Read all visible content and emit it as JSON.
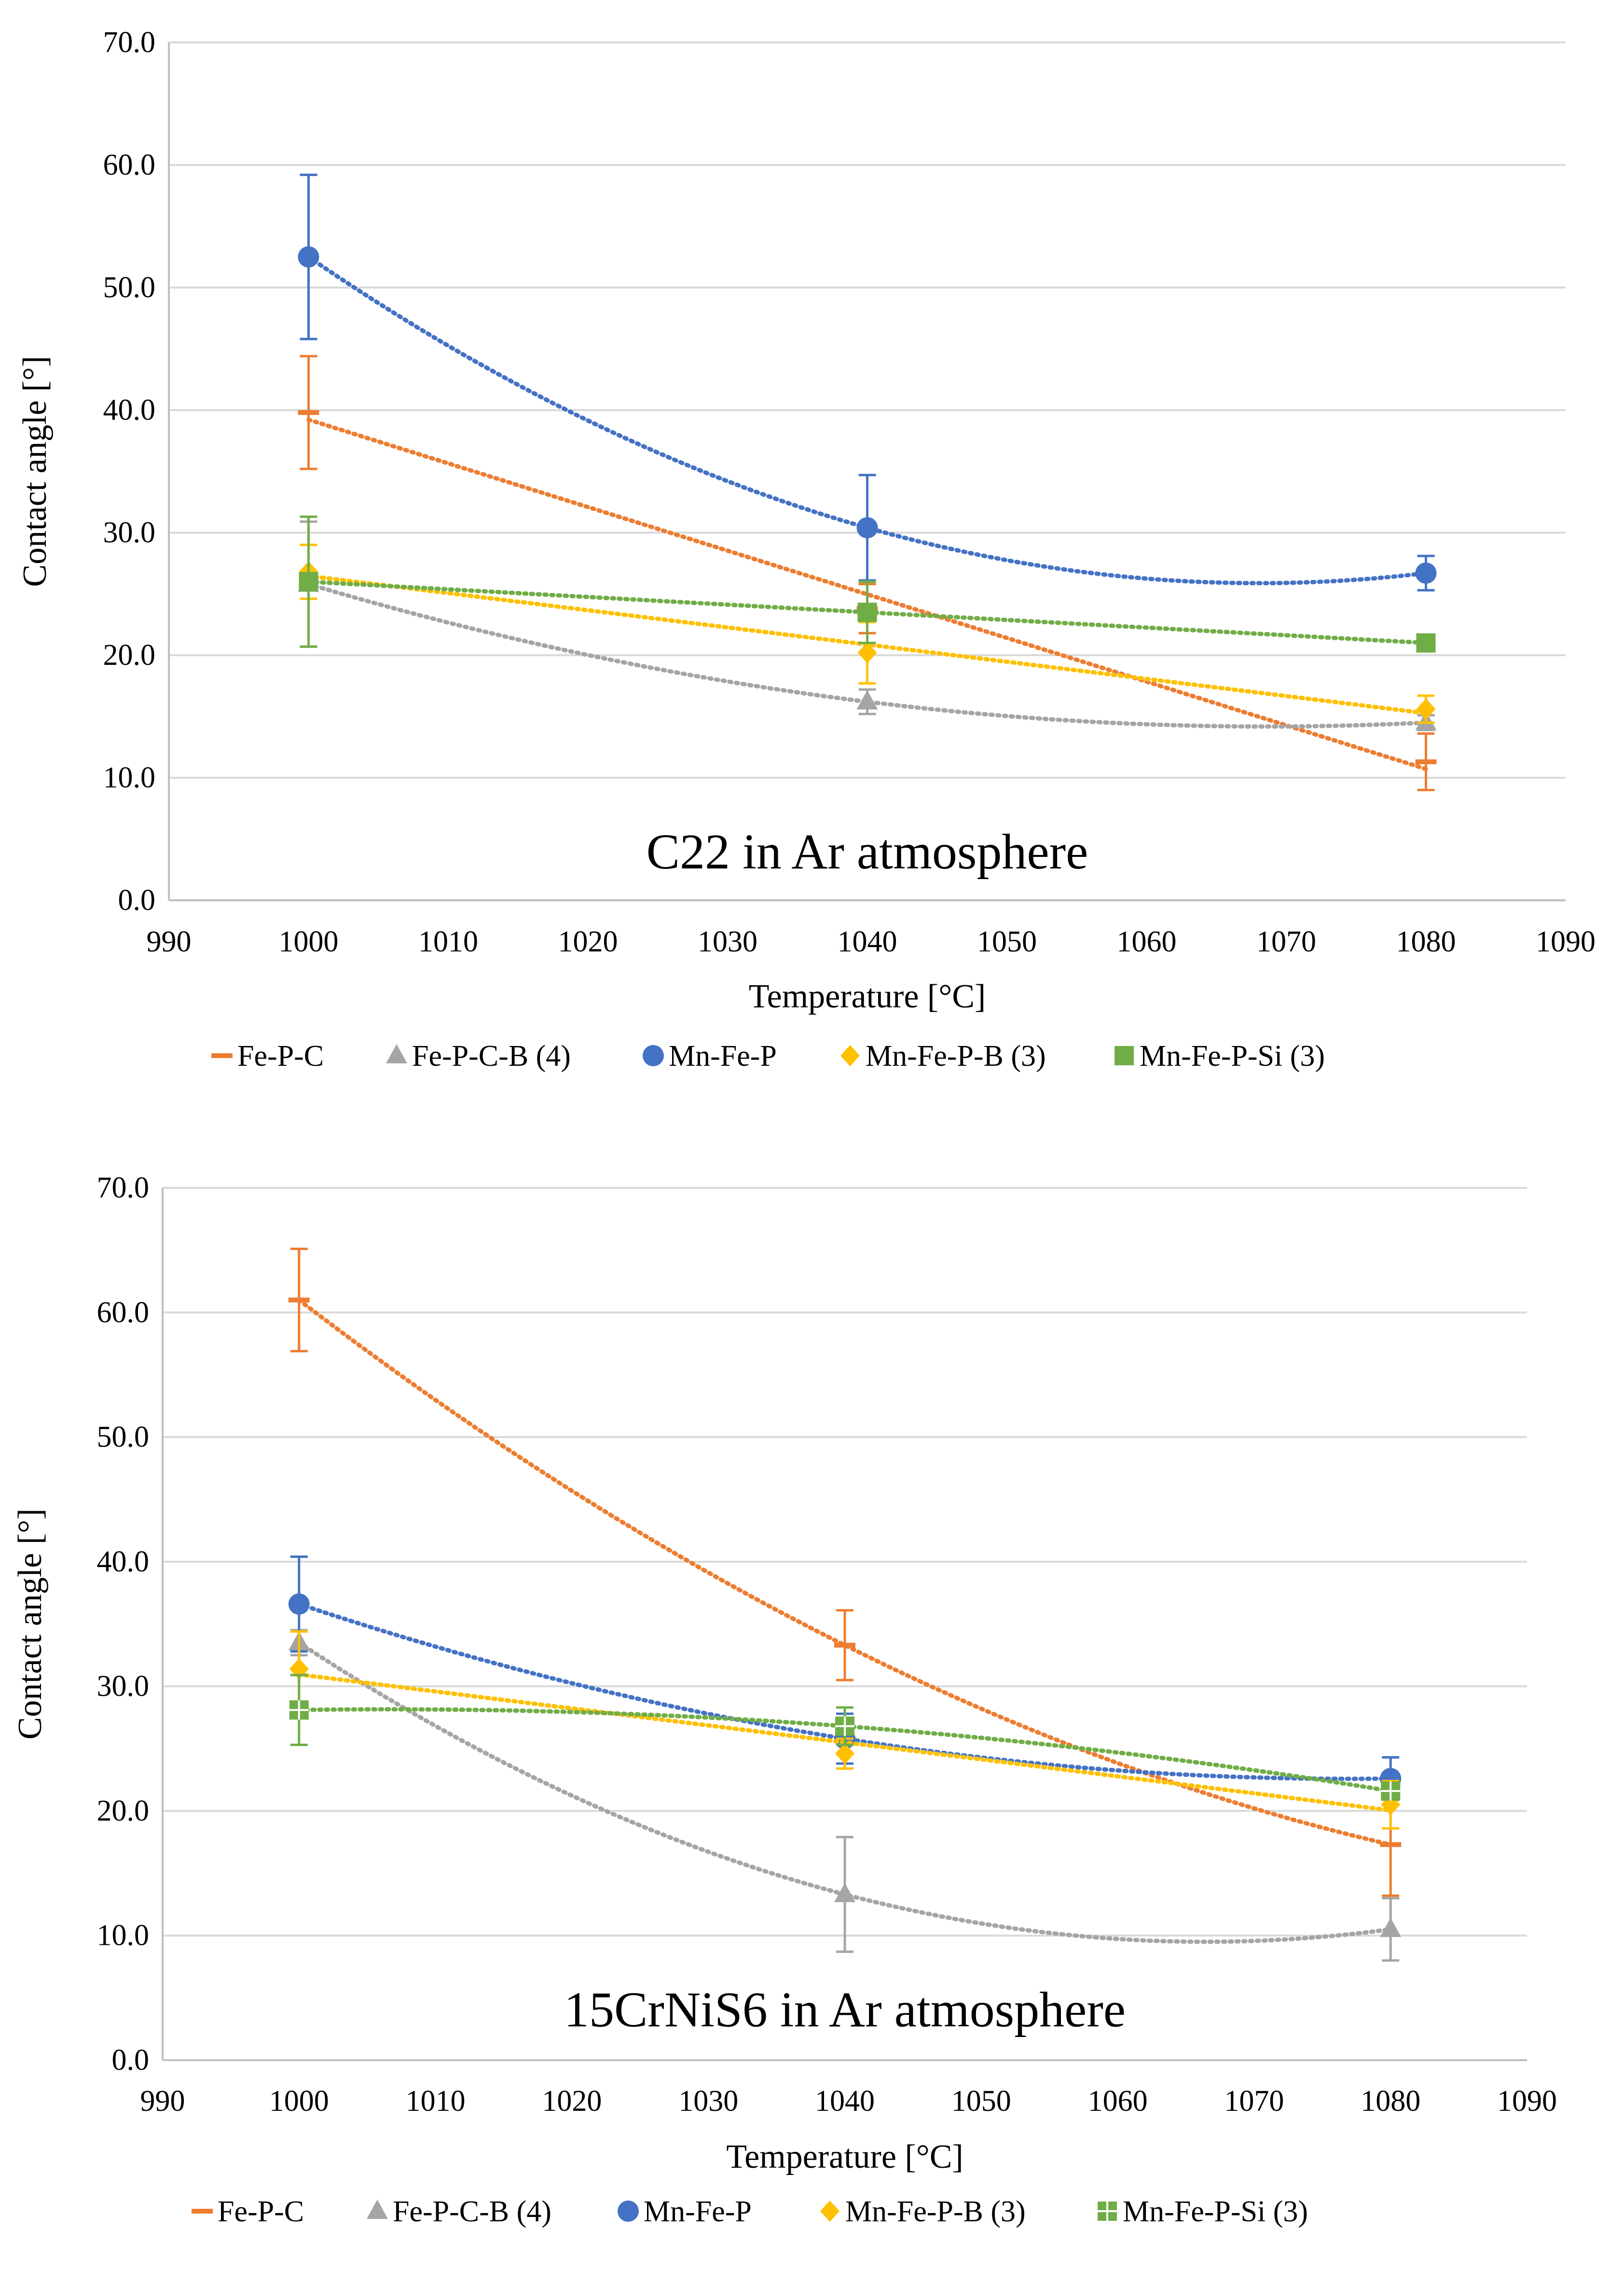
{
  "figure": {
    "description_panels": [
      "top",
      "bottom"
    ]
  },
  "colors": {
    "Fe-P-C": "#ED7D31",
    "Fe-P-C-B (4)": "#A5A5A5",
    "Mn-Fe-P": "#4472C4",
    "Mn-Fe-P-B (3)": "#FFC000",
    "Mn-Fe-P-Si (3)": "#70AD47",
    "grid": "#d9d9d9",
    "axis": "#bfbfbf"
  },
  "chart_data": [
    {
      "type": "line",
      "title": "C22 in Ar atmosphere",
      "xlabel": "Temperature [°C]",
      "ylabel": "Contact angle [°]",
      "xlim": [
        990,
        1090
      ],
      "ylim": [
        0,
        70
      ],
      "x_ticks": [
        "990",
        "1000",
        "1010",
        "1020",
        "1030",
        "1040",
        "1050",
        "1060",
        "1070",
        "1080",
        "1090"
      ],
      "y_ticks": [
        "0.0",
        "10.0",
        "20.0",
        "30.0",
        "40.0",
        "50.0",
        "60.0",
        "70.0"
      ],
      "grid": true,
      "legend": "bottom",
      "x": [
        1000,
        1040,
        1080
      ],
      "series": [
        {
          "name": "Fe-P-C",
          "marker": "dash",
          "values": [
            39.8,
            23.8,
            11.3
          ],
          "errors": [
            4.6,
            2.0,
            2.3
          ],
          "trend": "linear"
        },
        {
          "name": "Fe-P-C-B (4)",
          "marker": "triangle",
          "values": [
            25.8,
            16.2,
            14.5
          ],
          "errors": [
            5.1,
            1.0,
            0.6
          ],
          "trend": "poly2"
        },
        {
          "name": "Mn-Fe-P",
          "marker": "circle",
          "values": [
            52.5,
            30.4,
            26.7
          ],
          "errors": [
            6.7,
            4.3,
            1.4
          ],
          "trend": "poly2"
        },
        {
          "name": "Mn-Fe-P-B (3)",
          "marker": "diamond",
          "values": [
            26.8,
            20.2,
            15.6
          ],
          "errors": [
            2.2,
            2.5,
            1.1
          ],
          "trend": "linear"
        },
        {
          "name": "Mn-Fe-P-Si (3)",
          "marker": "square",
          "values": [
            26.0,
            23.5,
            21.0
          ],
          "errors": [
            5.3,
            2.5,
            0.5
          ],
          "trend": "linear"
        }
      ]
    },
    {
      "type": "line",
      "title": "15CrNiS6 in Ar atmosphere",
      "xlabel": "Temperature [°C]",
      "ylabel": "Contact angle [°]",
      "xlim": [
        990,
        1090
      ],
      "ylim": [
        0,
        70
      ],
      "x_ticks": [
        "990",
        "1000",
        "1010",
        "1020",
        "1030",
        "1040",
        "1050",
        "1060",
        "1070",
        "1080",
        "1090"
      ],
      "y_ticks": [
        "0.0",
        "10.0",
        "20.0",
        "30.0",
        "40.0",
        "50.0",
        "60.0",
        "70.0"
      ],
      "grid": true,
      "legend": "bottom",
      "x": [
        1000,
        1040,
        1080
      ],
      "series": [
        {
          "name": "Fe-P-C",
          "marker": "dash",
          "values": [
            61.0,
            33.3,
            17.3
          ],
          "errors": [
            4.1,
            2.8,
            4.1
          ],
          "trend": "poly2"
        },
        {
          "name": "Fe-P-C-B (4)",
          "marker": "triangle",
          "values": [
            33.5,
            13.3,
            10.5
          ],
          "errors": [
            1.0,
            4.6,
            2.5
          ],
          "trend": "poly2"
        },
        {
          "name": "Mn-Fe-P",
          "marker": "circle",
          "values": [
            36.6,
            25.8,
            22.6
          ],
          "errors": [
            3.8,
            2.0,
            1.7
          ],
          "trend": "poly2"
        },
        {
          "name": "Mn-Fe-P-B (3)",
          "marker": "diamond",
          "values": [
            31.4,
            24.6,
            20.5
          ],
          "errors": [
            3.0,
            1.2,
            1.9
          ],
          "trend": "linear"
        },
        {
          "name": "Mn-Fe-P-Si (3)",
          "marker": "cross-square",
          "values": [
            28.1,
            26.8,
            21.6
          ],
          "errors": [
            2.8,
            1.5,
            0.6
          ],
          "trend": "poly2"
        }
      ]
    }
  ]
}
